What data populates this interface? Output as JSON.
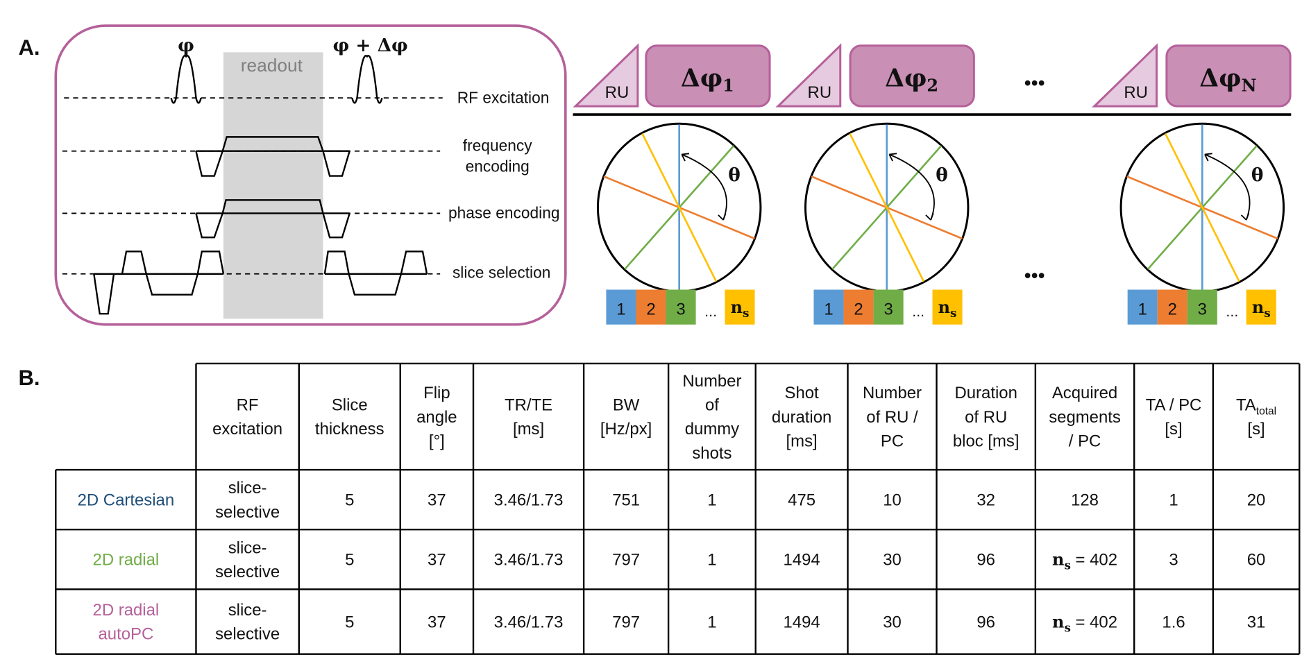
{
  "panel_a": {
    "label": "A.",
    "readout": "readout",
    "phi_1": "φ",
    "phi_2": "φ + Δφ",
    "rows": [
      "RF excitation",
      "frequency",
      "encoding",
      "phase encoding",
      "slice selection"
    ],
    "ru": "RU",
    "blocks": [
      {
        "symbol": "Δφ",
        "sub": "1"
      },
      {
        "symbol": "Δφ",
        "sub": "2"
      },
      {
        "symbol": "Δφ",
        "sub": "N"
      }
    ],
    "ellipsis": "•••",
    "theta": "θ",
    "segments": [
      "1",
      "2",
      "3",
      "...",
      "n",
      "s"
    ],
    "colors": {
      "frame": "#b5609a",
      "block_fill": "#c98fb5",
      "ru_fill": "#e6cadf",
      "readout_fill": "#d6d6d6",
      "blue": "#5b9bd5",
      "orange": "#ed7d31",
      "green": "#70ad47",
      "yellow": "#ffc000"
    }
  },
  "panel_b": {
    "label": "B.",
    "headers": [
      [
        "RF",
        "excitation"
      ],
      [
        "Slice",
        "thickness"
      ],
      [
        "Flip",
        "angle",
        "[°]"
      ],
      [
        "TR/TE",
        "[ms]"
      ],
      [
        "BW",
        "[Hz/px]"
      ],
      [
        "Number",
        "of",
        "dummy",
        "shots"
      ],
      [
        "Shot",
        "duration",
        "[ms]"
      ],
      [
        "Number",
        "of RU /",
        "PC"
      ],
      [
        "Duration",
        "of RU",
        "bloc  [ms]"
      ],
      [
        "Acquired",
        "segments",
        "/ PC"
      ],
      [
        "TA / PC",
        "[s]"
      ],
      [
        "TA|total",
        "[s]"
      ]
    ],
    "rows": [
      {
        "name": [
          "2D Cartesian"
        ],
        "color": "#1f4e79",
        "cells": [
          [
            "slice-",
            "selective"
          ],
          [
            "5"
          ],
          [
            "37"
          ],
          [
            "3.46/1.73"
          ],
          [
            "751"
          ],
          [
            "1"
          ],
          [
            "475"
          ],
          [
            "10"
          ],
          [
            "32"
          ],
          [
            "128"
          ],
          [
            "1"
          ],
          [
            "20"
          ]
        ]
      },
      {
        "name": [
          "2D radial"
        ],
        "color": "#70ad47",
        "cells": [
          [
            "slice-",
            "selective"
          ],
          [
            "5"
          ],
          [
            "37"
          ],
          [
            "3.46/1.73"
          ],
          [
            "797"
          ],
          [
            "1"
          ],
          [
            "1494"
          ],
          [
            "30"
          ],
          [
            "96"
          ],
          [
            "ns|= 402"
          ],
          [
            "3"
          ],
          [
            "60"
          ]
        ]
      },
      {
        "name": [
          "2D radial",
          "autoPC"
        ],
        "color": "#b5609a",
        "cells": [
          [
            "slice-",
            "selective"
          ],
          [
            "5"
          ],
          [
            "37"
          ],
          [
            "3.46/1.73"
          ],
          [
            "797"
          ],
          [
            "1"
          ],
          [
            "1494"
          ],
          [
            "30"
          ],
          [
            "96"
          ],
          [
            "ns|= 402"
          ],
          [
            "1.6"
          ],
          [
            "31"
          ]
        ]
      }
    ]
  }
}
